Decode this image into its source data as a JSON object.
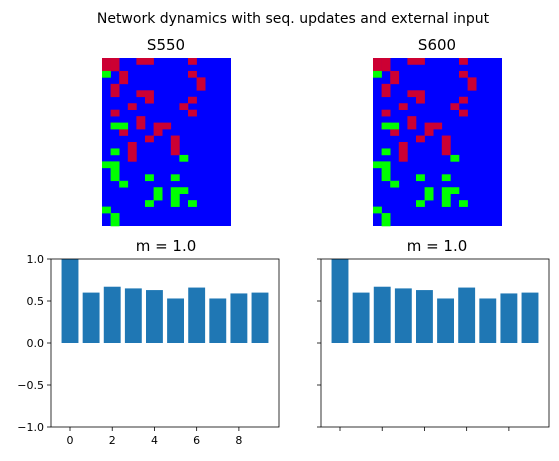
{
  "figure_title": "Network dynamics with seq. updates and external input",
  "legend_colors": {
    "low": "#0000ff",
    "mid": "#00ff00",
    "high": "#cc0033"
  },
  "bar_color": "#1f77b4",
  "panels": [
    {
      "title": "S550",
      "grid": {
        "rows": 16,
        "cols": 12,
        "red": [
          [
            0,
            0
          ],
          [
            0,
            1
          ],
          [
            0,
            4
          ],
          [
            0,
            5
          ],
          [
            0,
            10
          ],
          [
            1,
            0
          ],
          [
            1,
            1
          ],
          [
            2,
            2
          ],
          [
            2,
            10
          ],
          [
            3,
            2
          ],
          [
            3,
            11
          ],
          [
            4,
            1
          ],
          [
            4,
            11
          ],
          [
            5,
            1
          ],
          [
            5,
            4
          ],
          [
            5,
            5
          ],
          [
            6,
            5
          ],
          [
            6,
            10
          ],
          [
            7,
            3
          ],
          [
            7,
            9
          ],
          [
            8,
            1
          ],
          [
            8,
            10
          ],
          [
            9,
            4
          ],
          [
            10,
            1
          ],
          [
            10,
            4
          ],
          [
            10,
            6
          ],
          [
            10,
            7
          ],
          [
            11,
            2
          ],
          [
            11,
            6
          ],
          [
            12,
            5
          ],
          [
            12,
            8
          ],
          [
            13,
            3
          ],
          [
            13,
            8
          ],
          [
            14,
            3
          ],
          [
            14,
            8
          ],
          [
            15,
            3
          ]
        ],
        "green": [
          [
            2,
            0
          ],
          [
            10,
            1
          ],
          [
            10,
            2
          ],
          [
            14,
            1
          ],
          [
            15,
            9
          ],
          [
            16,
            0
          ],
          [
            16,
            1
          ],
          [
            17,
            1
          ],
          [
            18,
            1
          ],
          [
            18,
            5
          ],
          [
            18,
            8
          ],
          [
            19,
            2
          ],
          [
            20,
            6
          ],
          [
            20,
            8
          ],
          [
            20,
            9
          ],
          [
            21,
            6
          ],
          [
            21,
            8
          ],
          [
            22,
            5
          ],
          [
            22,
            8
          ],
          [
            22,
            10
          ],
          [
            23,
            0
          ],
          [
            24,
            1
          ],
          [
            25,
            1
          ]
        ],
        "rows_total": 26,
        "cols_total": 15
      }
    },
    {
      "title": "S600",
      "grid": {
        "red": [
          [
            0,
            0
          ],
          [
            0,
            1
          ],
          [
            0,
            4
          ],
          [
            0,
            5
          ],
          [
            0,
            10
          ],
          [
            1,
            0
          ],
          [
            1,
            1
          ],
          [
            2,
            2
          ],
          [
            2,
            10
          ],
          [
            3,
            2
          ],
          [
            3,
            11
          ],
          [
            4,
            1
          ],
          [
            4,
            11
          ],
          [
            5,
            1
          ],
          [
            5,
            4
          ],
          [
            5,
            5
          ],
          [
            6,
            5
          ],
          [
            6,
            10
          ],
          [
            7,
            3
          ],
          [
            7,
            9
          ],
          [
            8,
            1
          ],
          [
            8,
            10
          ],
          [
            9,
            4
          ],
          [
            10,
            1
          ],
          [
            10,
            4
          ],
          [
            10,
            6
          ],
          [
            10,
            7
          ],
          [
            11,
            2
          ],
          [
            11,
            6
          ],
          [
            12,
            5
          ],
          [
            12,
            8
          ],
          [
            13,
            3
          ],
          [
            13,
            8
          ],
          [
            14,
            3
          ],
          [
            14,
            8
          ],
          [
            15,
            3
          ]
        ],
        "green": [
          [
            2,
            0
          ],
          [
            10,
            1
          ],
          [
            10,
            2
          ],
          [
            14,
            1
          ],
          [
            15,
            9
          ],
          [
            16,
            0
          ],
          [
            16,
            1
          ],
          [
            17,
            1
          ],
          [
            18,
            1
          ],
          [
            18,
            5
          ],
          [
            18,
            8
          ],
          [
            19,
            2
          ],
          [
            20,
            6
          ],
          [
            20,
            8
          ],
          [
            20,
            9
          ],
          [
            21,
            6
          ],
          [
            21,
            8
          ],
          [
            22,
            5
          ],
          [
            22,
            8
          ],
          [
            22,
            10
          ],
          [
            23,
            0
          ],
          [
            24,
            1
          ],
          [
            25,
            1
          ]
        ],
        "rows_total": 26,
        "cols_total": 15
      }
    }
  ],
  "chart_data": [
    {
      "type": "bar",
      "title": "m = 1.0",
      "x": [
        0,
        1,
        2,
        3,
        4,
        5,
        6,
        7,
        8,
        9
      ],
      "values": [
        1.0,
        0.6,
        0.67,
        0.65,
        0.63,
        0.53,
        0.66,
        0.53,
        0.59,
        0.6
      ],
      "ylim": [
        -1.0,
        1.0
      ],
      "xlim": [
        -0.9,
        9.9
      ],
      "yticks": [
        "1.0",
        "0.5",
        "0.0",
        "−0.5",
        "−1.0"
      ],
      "ytick_values": [
        1.0,
        0.5,
        0.0,
        -0.5,
        -1.0
      ],
      "xticks": [
        "0",
        "2",
        "4",
        "6",
        "8"
      ],
      "xtick_values": [
        0,
        2,
        4,
        6,
        8
      ],
      "xlabel": "",
      "ylabel": "",
      "grid": false
    },
    {
      "type": "bar",
      "title": "m = 1.0",
      "x": [
        0,
        1,
        2,
        3,
        4,
        5,
        6,
        7,
        8,
        9
      ],
      "values": [
        1.0,
        0.6,
        0.67,
        0.65,
        0.63,
        0.53,
        0.66,
        0.53,
        0.59,
        0.6
      ],
      "ylim": [
        -1.0,
        1.0
      ],
      "xlim": [
        -0.9,
        9.9
      ],
      "yticks": [],
      "ytick_values": [
        1.0,
        0.5,
        0.0,
        -0.5,
        -1.0
      ],
      "xticks": [],
      "xtick_values": [
        0,
        2,
        4,
        6,
        8
      ],
      "xlabel": "",
      "ylabel": "",
      "grid": false
    }
  ]
}
